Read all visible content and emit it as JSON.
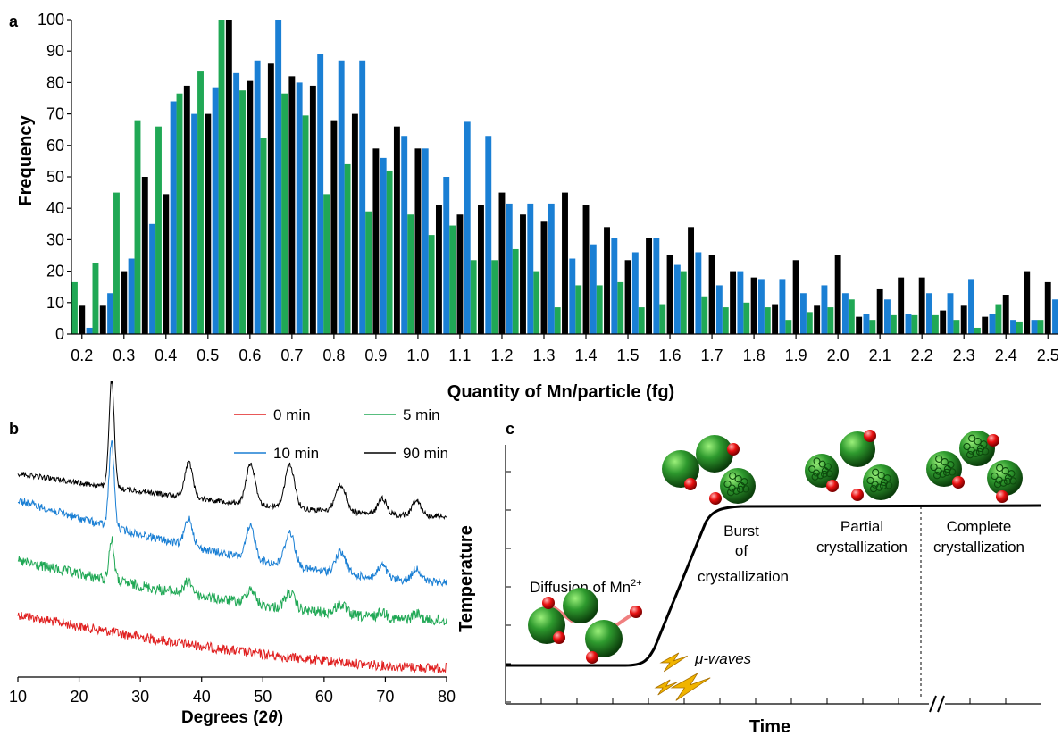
{
  "colors": {
    "green": "#20a855",
    "black": "#000000",
    "blue": "#1a7fd4",
    "red": "#e02020",
    "gold": "#f0b400",
    "link": "#f08080"
  },
  "panel_a": {
    "label": "a",
    "ylabel": "Frequency",
    "xlabel": "Quantity of Mn/particle (fg)",
    "chart_data": {
      "type": "bar",
      "ylim": [
        0,
        100
      ],
      "yticks": [
        "0",
        "10",
        "20",
        "30",
        "40",
        "50",
        "60",
        "70",
        "80",
        "90",
        "100"
      ],
      "xtick_labels": [
        "0.2",
        "0.3",
        "0.4",
        "0.5",
        "0.6",
        "0.7",
        "0.8",
        "0.9",
        "1.0",
        "1.1",
        "1.2",
        "1.3",
        "1.4",
        "1.5",
        "1.6",
        "1.7",
        "1.8",
        "1.9",
        "2.0",
        "2.1",
        "2.2",
        "2.3",
        "2.4",
        "2.5"
      ],
      "x": [
        0.2,
        0.25,
        0.3,
        0.35,
        0.4,
        0.45,
        0.5,
        0.55,
        0.6,
        0.65,
        0.7,
        0.75,
        0.8,
        0.85,
        0.9,
        0.95,
        1.0,
        1.05,
        1.1,
        1.15,
        1.2,
        1.25,
        1.3,
        1.35,
        1.4,
        1.45,
        1.5,
        1.55,
        1.6,
        1.65,
        1.7,
        1.75,
        1.8,
        1.85,
        1.9,
        1.95,
        2.0,
        2.05,
        2.1,
        2.15,
        2.2,
        2.25,
        2.3,
        2.35,
        2.4,
        2.45,
        2.5
      ],
      "series": [
        {
          "color": "#20a855",
          "values": [
            16.5,
            22.5,
            45,
            68,
            66,
            76.5,
            83.5,
            100,
            77.5,
            62.5,
            76.5,
            69.5,
            44.5,
            54,
            39,
            52,
            38,
            31.5,
            34.5,
            23.5,
            23.5,
            27,
            20,
            8.5,
            15.5,
            15.5,
            16.5,
            8.5,
            9.5,
            20,
            12,
            8.5,
            10,
            8.5,
            4.5,
            7,
            8.5,
            11,
            4.5,
            6,
            6,
            6,
            4.5,
            2,
            9.5,
            4,
            4.5
          ]
        },
        {
          "color": "#000000",
          "values": [
            9,
            9,
            20,
            50,
            44.5,
            79,
            70,
            100,
            80.5,
            86,
            82,
            79,
            68,
            70,
            59,
            66,
            59,
            41,
            38,
            41,
            45,
            38,
            36,
            45,
            41,
            34,
            23.5,
            30.5,
            25,
            34,
            25,
            20,
            18,
            9.5,
            23.5,
            9,
            25,
            5.5,
            14.5,
            18,
            18,
            7.5,
            9,
            5.5,
            12.5,
            20,
            16.5
          ]
        },
        {
          "color": "#1a7fd4",
          "values": [
            2,
            13,
            24,
            35,
            74,
            70,
            78.5,
            83,
            87,
            100,
            80,
            89,
            87,
            87,
            56,
            63,
            59,
            50,
            67.5,
            63,
            41.5,
            41.5,
            41.5,
            24,
            28.5,
            30.5,
            26,
            30.5,
            22,
            26,
            15.5,
            20,
            17.5,
            17.5,
            13,
            15.5,
            13,
            6.5,
            11,
            6.5,
            13,
            13,
            17.5,
            6.5,
            4.5,
            4.5,
            11
          ]
        }
      ]
    }
  },
  "panel_b": {
    "label": "b",
    "xlabel_prefix": "Degrees (2",
    "xlabel_theta": "θ",
    "xlabel_suffix": ")",
    "chart_data": {
      "type": "line",
      "xlim": [
        10,
        80
      ],
      "xticks": [
        "10",
        "20",
        "30",
        "40",
        "50",
        "60",
        "70",
        "80"
      ],
      "series": [
        {
          "name": "0 min",
          "color": "#e02020"
        },
        {
          "name": "5 min",
          "color": "#20a855"
        },
        {
          "name": "10 min",
          "color": "#1a7fd4"
        },
        {
          "name": "90 min",
          "color": "#000000"
        }
      ]
    }
  },
  "panel_c": {
    "label": "c",
    "ylabel": "Temperature",
    "xlabel": "Time",
    "diffusion_text": "Diffusion of Mn",
    "diffusion_sup": "2+",
    "waves_text": "μ-waves",
    "burst_line1": "Burst",
    "burst_line2": "of",
    "burst_line3": "crystallization",
    "partial_line1": "Partial",
    "partial_line2": "crystallization",
    "complete_line1": "Complete",
    "complete_line2": "crystallization"
  }
}
